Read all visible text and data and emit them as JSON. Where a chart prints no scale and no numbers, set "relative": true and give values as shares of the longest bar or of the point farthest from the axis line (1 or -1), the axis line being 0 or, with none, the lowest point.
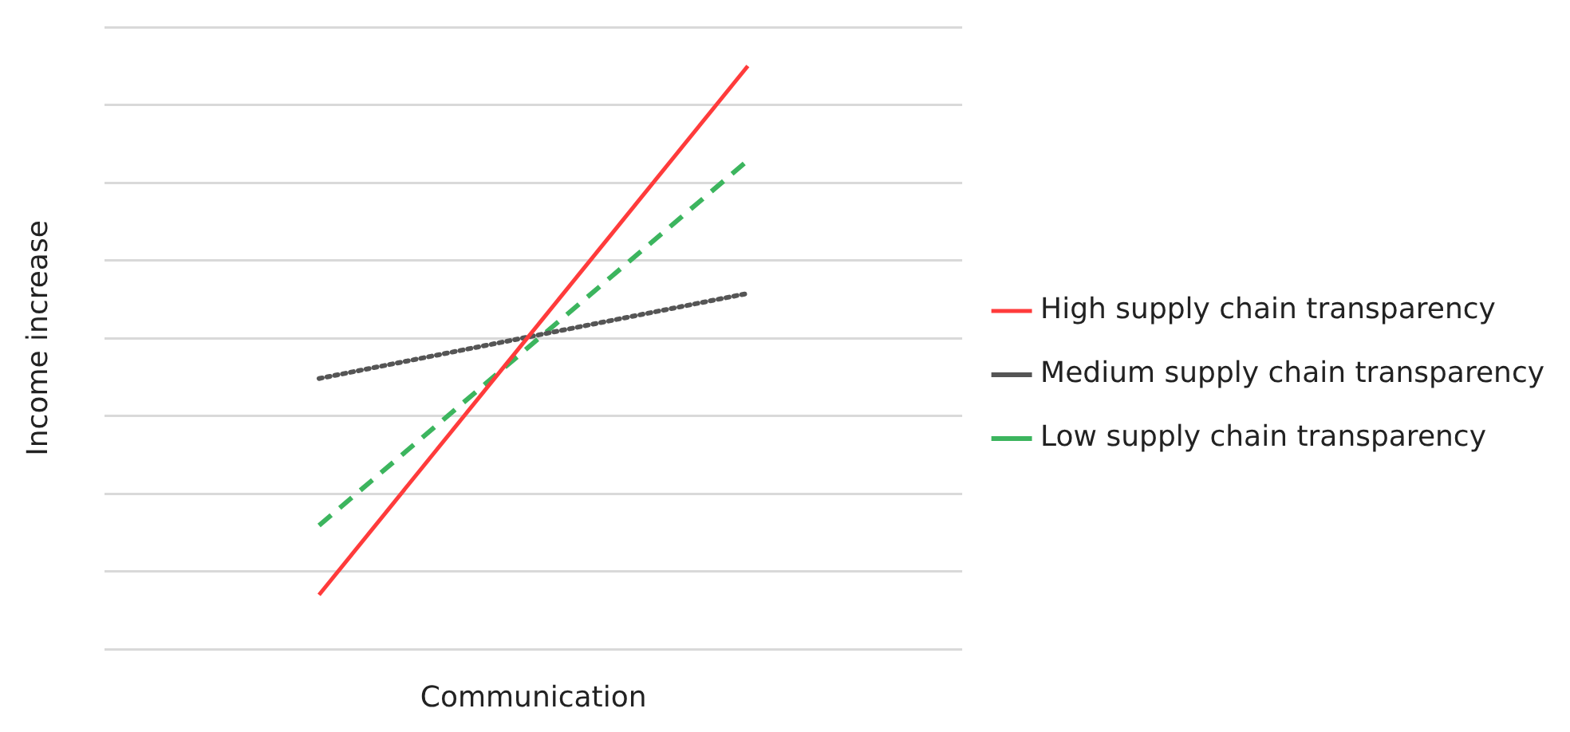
{
  "chart_data": {
    "type": "line",
    "relative": true,
    "xlabel": "Communication",
    "ylabel": "Income increase",
    "categories": [
      null,
      null
    ],
    "grid": "y",
    "legend": "right",
    "marker": "none",
    "series": [
      {
        "name": "High supply chain transparency",
        "color": "#ff3b3b",
        "line_style": "solid",
        "values": [
          0.093,
          1
        ]
      },
      {
        "name": "Medium supply chain transparency",
        "color": "#555555",
        "line_style": "dotted",
        "values": [
          0.464,
          0.61
        ]
      },
      {
        "name": "Low supply chain transparency",
        "color": "#3cb55e",
        "line_style": "dashed",
        "values": [
          0.212,
          0.838
        ]
      }
    ]
  }
}
